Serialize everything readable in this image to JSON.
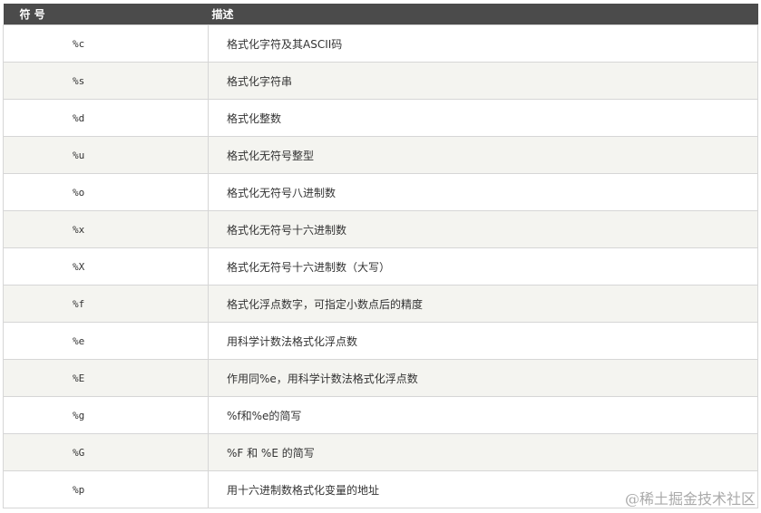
{
  "header": {
    "symbol": "符 号",
    "description": "描述"
  },
  "rows": [
    {
      "symbol": "%c",
      "description": "格式化字符及其ASCII码"
    },
    {
      "symbol": "%s",
      "description": "格式化字符串"
    },
    {
      "symbol": "%d",
      "description": "格式化整数"
    },
    {
      "symbol": "%u",
      "description": "格式化无符号整型"
    },
    {
      "symbol": "%o",
      "description": "格式化无符号八进制数"
    },
    {
      "symbol": "%x",
      "description": "格式化无符号十六进制数"
    },
    {
      "symbol": "%X",
      "description": "格式化无符号十六进制数（大写）"
    },
    {
      "symbol": "%f",
      "description": "格式化浮点数字，可指定小数点后的精度"
    },
    {
      "symbol": "%e",
      "description": "用科学计数法格式化浮点数"
    },
    {
      "symbol": "%E",
      "description": "作用同%e，用科学计数法格式化浮点数"
    },
    {
      "symbol": "%g",
      "description": "%f和%e的简写"
    },
    {
      "symbol": "%G",
      "description": "%F 和 %E 的简写"
    },
    {
      "symbol": "%p",
      "description": "用十六进制数格式化变量的地址"
    }
  ],
  "watermark": "@稀土掘金技术社区"
}
